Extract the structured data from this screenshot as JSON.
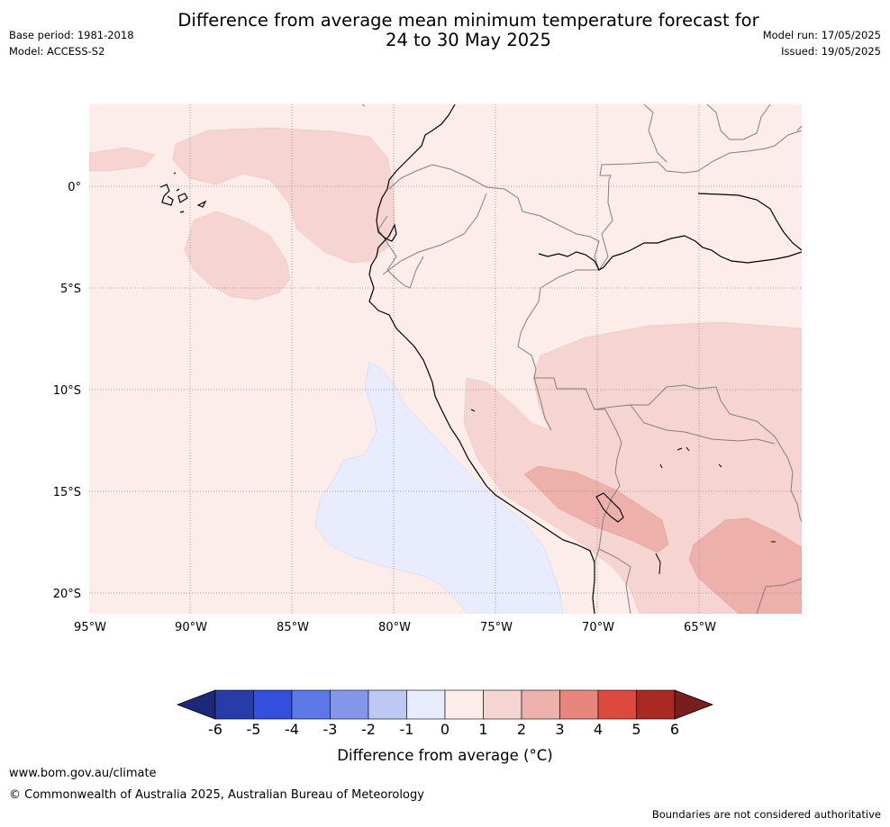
{
  "title_line1": "Difference from average mean minimum temperature forecast for",
  "title_line2": "24 to 30 May 2025",
  "base_period": "Base period: 1981-2018",
  "model": "Model: ACCESS-S2",
  "model_run": "Model run: 17/05/2025",
  "issued": "Issued: 19/05/2025",
  "lat_labels": [
    "0°",
    "5°S",
    "10°S",
    "15°S",
    "20°S"
  ],
  "lon_labels": [
    "95°W",
    "90°W",
    "85°W",
    "80°W",
    "75°W",
    "70°W",
    "65°W"
  ],
  "colorbar": {
    "label": "Difference from average (°C)",
    "ticks": [
      "-6",
      "-5",
      "-4",
      "-3",
      "-2",
      "-1",
      "0",
      "1",
      "2",
      "3",
      "4",
      "5",
      "6"
    ],
    "colors": [
      "#1e2878",
      "#283ca8",
      "#3250dc",
      "#5a78e6",
      "#8496ea",
      "#bec8f4",
      "#e6ecfc",
      "#fcecea",
      "#f6d4d2",
      "#eeb0aa",
      "#e6867c",
      "#dc4a3e",
      "#aa2a22",
      "#781e1e"
    ]
  },
  "website": "www.bom.gov.au/climate",
  "copyright": "© Commonwealth of Australia 2025, Australian Bureau of Meteorology",
  "disclaimer": "Boundaries are not considered authoritative"
}
